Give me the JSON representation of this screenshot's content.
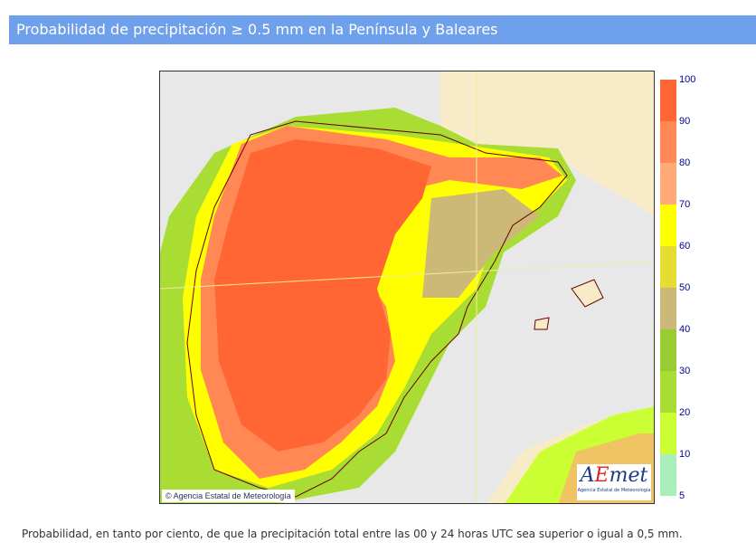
{
  "title": "Probabilidad de precipitación ≥ 0.5 mm en la Península y Baleares",
  "map": {
    "copyright": "© Agencia Estatal de Meteorología",
    "logo_text": "AEmet",
    "logo_sub": "Agencia Estatal de Meteorología"
  },
  "legend": {
    "ticks": [
      "100",
      "90",
      "80",
      "70",
      "60",
      "50",
      "40",
      "30",
      "20",
      "10",
      "5"
    ],
    "colors": [
      "#ff6633",
      "#ff8855",
      "#ffaa77",
      "#ffff00",
      "#e6dd33",
      "#ccb877",
      "#99cc33",
      "#aadd33",
      "#ccff33",
      "#aaeebb"
    ]
  },
  "caption": "Probabilidad, en tanto por ciento, de que la precipitación total entre las 00 y 24 horas UTC sea superior o igual a 0,5 mm."
}
